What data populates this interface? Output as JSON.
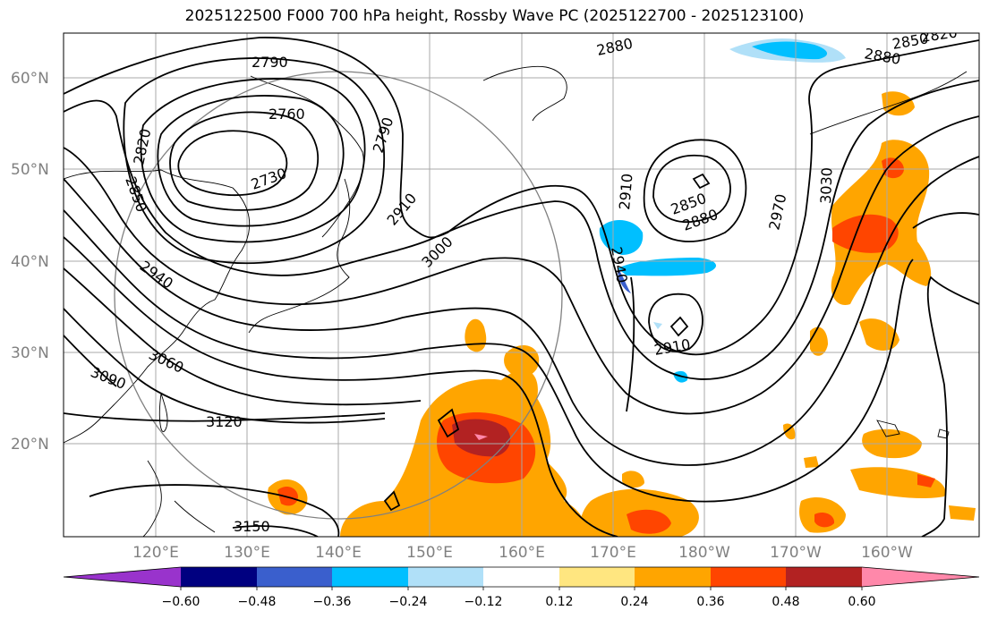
{
  "title": "2025122500 F000 700 hPa height, Rossby Wave PC (2025122700 - 2025123100)",
  "lat_labels": [
    "60°N",
    "50°N",
    "40°N",
    "30°N",
    "20°N"
  ],
  "lon_labels": [
    "120°E",
    "130°E",
    "140°E",
    "150°E",
    "160°E",
    "170°E",
    "180°W",
    "170°W",
    "160°W"
  ],
  "contour_labels": [
    {
      "text": "2790"
    },
    {
      "text": "2760"
    },
    {
      "text": "2730"
    },
    {
      "text": "2790"
    },
    {
      "text": "2820"
    },
    {
      "text": "2850"
    },
    {
      "text": "2910"
    },
    {
      "text": "2940"
    },
    {
      "text": "3000"
    },
    {
      "text": "3060"
    },
    {
      "text": "3090"
    },
    {
      "text": "3120"
    },
    {
      "text": "3150"
    },
    {
      "text": "2880"
    },
    {
      "text": "2850"
    },
    {
      "text": "2880"
    },
    {
      "text": "2820"
    },
    {
      "text": "2910"
    },
    {
      "text": "2850"
    },
    {
      "text": "2880"
    },
    {
      "text": "2940"
    },
    {
      "text": "2910"
    },
    {
      "text": "2970"
    },
    {
      "text": "3030"
    }
  ],
  "colorbar": {
    "colors": [
      "#9933cc",
      "#000080",
      "#3a5fcd",
      "#00bfff",
      "#b0e0f8",
      "#ffffff",
      "#ffe680",
      "#ffa500",
      "#ff4500",
      "#b22222",
      "#ff88aa"
    ],
    "tick_labels": [
      "−0.60",
      "−0.48",
      "−0.36",
      "−0.24",
      "−0.12",
      "0.12",
      "0.24",
      "0.36",
      "0.48",
      "0.60"
    ]
  }
}
